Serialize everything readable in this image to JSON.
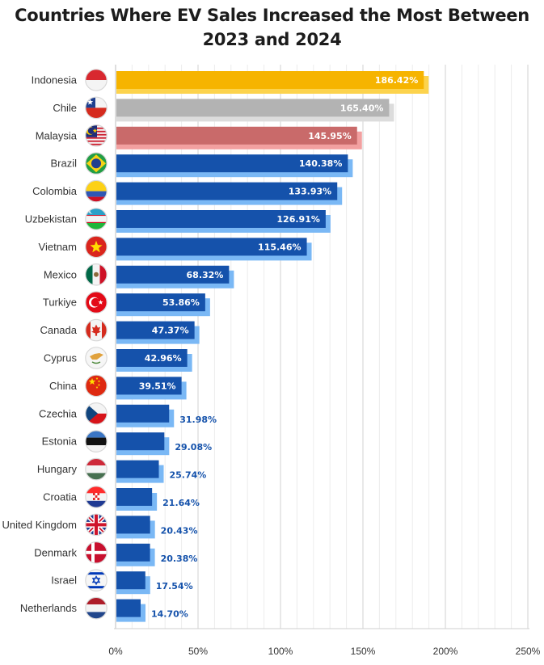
{
  "chart_data": {
    "type": "bar",
    "orientation": "horizontal",
    "title": "Countries Where EV Sales Increased the Most Between 2023 and 2024",
    "xlabel": "",
    "ylabel": "",
    "xlim": [
      0,
      250
    ],
    "x_ticks": [
      "0%",
      "50%",
      "100%",
      "150%",
      "200%",
      "250%"
    ],
    "x_tick_values": [
      0,
      50,
      100,
      150,
      200,
      250
    ],
    "grid": true,
    "categories": [
      "Indonesia",
      "Chile",
      "Malaysia",
      "Brazil",
      "Colombia",
      "Uzbekistan",
      "Vietnam",
      "Mexico",
      "Turkiye",
      "Canada",
      "Cyprus",
      "China",
      "Czechia",
      "Estonia",
      "Hungary",
      "Croatia",
      "United Kingdom",
      "Denmark",
      "Israel",
      "Netherlands"
    ],
    "values": [
      186.42,
      165.4,
      145.95,
      140.38,
      133.93,
      126.91,
      115.46,
      68.32,
      53.86,
      47.37,
      42.96,
      39.51,
      31.98,
      29.08,
      25.74,
      21.64,
      20.43,
      20.38,
      17.54,
      14.7
    ],
    "value_labels": [
      "186.42%",
      "165.40%",
      "145.95%",
      "140.38%",
      "133.93%",
      "126.91%",
      "115.46%",
      "68.32%",
      "53.86%",
      "47.37%",
      "42.96%",
      "39.51%",
      "31.98%",
      "29.08%",
      "25.74%",
      "21.64%",
      "20.43%",
      "20.38%",
      "17.54%",
      "14.70%"
    ],
    "bar_colors": {
      "Indonesia": {
        "main": "#f6b400",
        "shadow": "#fcd34d"
      },
      "Chile": {
        "main": "#b3b3b3",
        "shadow": "#dcdcdc"
      },
      "Malaysia": {
        "main": "#c96a6a",
        "shadow": "#f2a0a0"
      },
      "default": {
        "main": "#1552ab",
        "shadow": "#7ab8f5"
      }
    },
    "flag_icons": [
      "indonesia-flag-icon",
      "chile-flag-icon",
      "malaysia-flag-icon",
      "brazil-flag-icon",
      "colombia-flag-icon",
      "uzbekistan-flag-icon",
      "vietnam-flag-icon",
      "mexico-flag-icon",
      "turkiye-flag-icon",
      "canada-flag-icon",
      "cyprus-flag-icon",
      "china-flag-icon",
      "czechia-flag-icon",
      "estonia-flag-icon",
      "hungary-flag-icon",
      "croatia-flag-icon",
      "united-kingdom-flag-icon",
      "denmark-flag-icon",
      "israel-flag-icon",
      "netherlands-flag-icon"
    ]
  }
}
